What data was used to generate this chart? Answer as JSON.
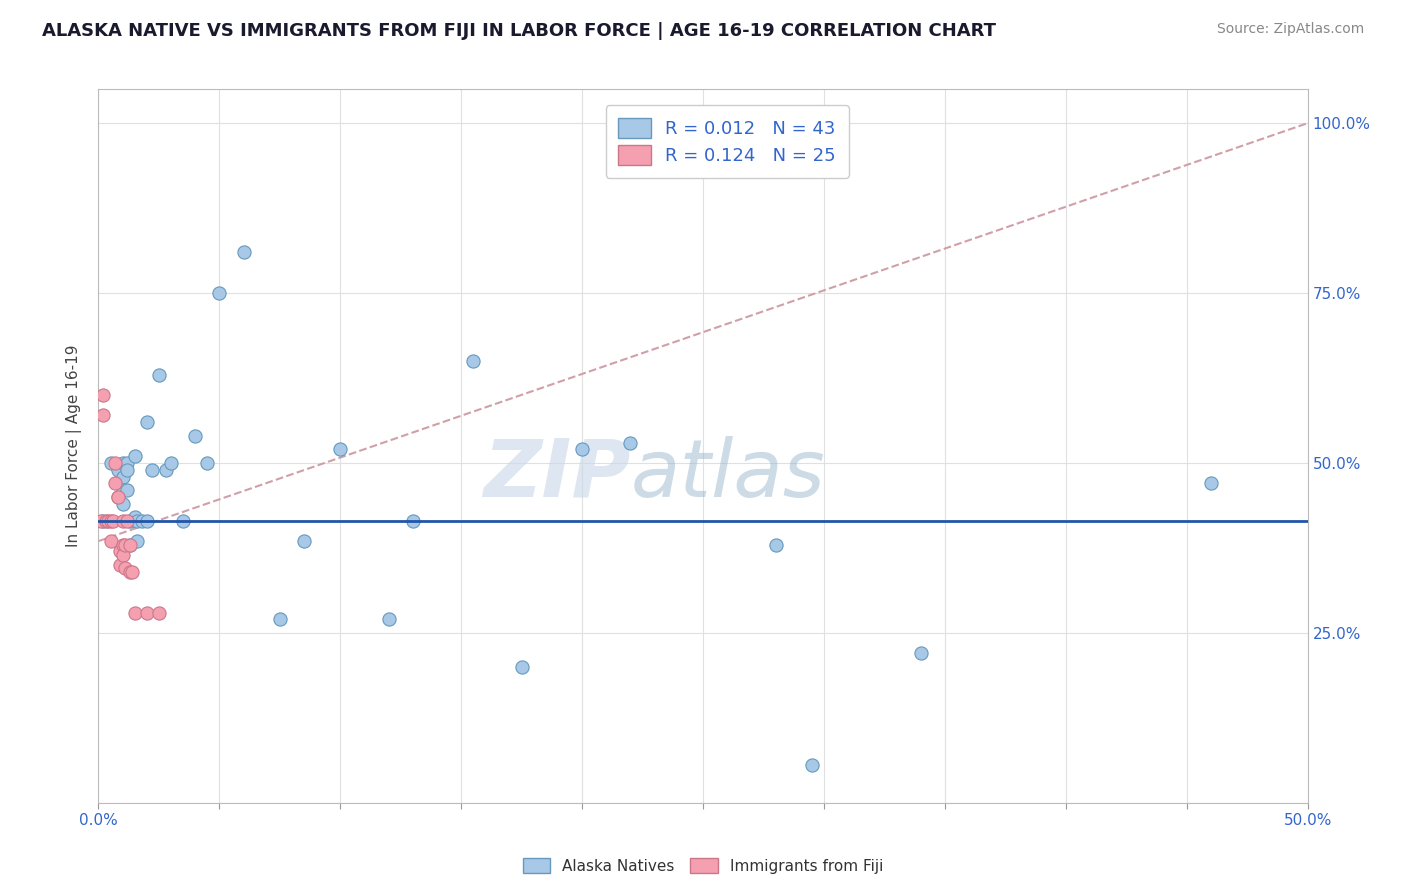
{
  "title": "ALASKA NATIVE VS IMMIGRANTS FROM FIJI IN LABOR FORCE | AGE 16-19 CORRELATION CHART",
  "source": "Source: ZipAtlas.com",
  "ylabel": "In Labor Force | Age 16-19",
  "x_min": 0.0,
  "x_max": 0.5,
  "y_min": 0.0,
  "y_max": 1.05,
  "y_ticks": [
    0.0,
    0.25,
    0.5,
    0.75,
    1.0
  ],
  "y_tick_labels": [
    "",
    "25.0%",
    "50.0%",
    "75.0%",
    "100.0%"
  ],
  "alaska_natives_x": [
    0.002,
    0.005,
    0.008,
    0.008,
    0.008,
    0.01,
    0.01,
    0.01,
    0.01,
    0.012,
    0.012,
    0.012,
    0.013,
    0.013,
    0.015,
    0.015,
    0.016,
    0.016,
    0.018,
    0.02,
    0.02,
    0.022,
    0.025,
    0.028,
    0.03,
    0.035,
    0.04,
    0.045,
    0.05,
    0.06,
    0.075,
    0.085,
    0.1,
    0.12,
    0.13,
    0.155,
    0.175,
    0.2,
    0.22,
    0.28,
    0.295,
    0.34,
    0.46
  ],
  "alaska_natives_y": [
    0.415,
    0.5,
    0.49,
    0.47,
    0.45,
    0.5,
    0.48,
    0.46,
    0.44,
    0.5,
    0.49,
    0.46,
    0.415,
    0.38,
    0.51,
    0.42,
    0.415,
    0.385,
    0.415,
    0.56,
    0.415,
    0.49,
    0.63,
    0.49,
    0.5,
    0.415,
    0.54,
    0.5,
    0.75,
    0.81,
    0.27,
    0.385,
    0.52,
    0.27,
    0.415,
    0.65,
    0.2,
    0.52,
    0.53,
    0.38,
    0.055,
    0.22,
    0.47
  ],
  "fiji_x": [
    0.001,
    0.002,
    0.002,
    0.003,
    0.004,
    0.005,
    0.005,
    0.006,
    0.007,
    0.007,
    0.008,
    0.009,
    0.009,
    0.01,
    0.01,
    0.01,
    0.011,
    0.011,
    0.012,
    0.013,
    0.013,
    0.014,
    0.015,
    0.02,
    0.025
  ],
  "fiji_y": [
    0.415,
    0.6,
    0.57,
    0.415,
    0.415,
    0.415,
    0.385,
    0.415,
    0.5,
    0.47,
    0.45,
    0.37,
    0.35,
    0.415,
    0.38,
    0.365,
    0.38,
    0.345,
    0.415,
    0.38,
    0.34,
    0.34,
    0.28,
    0.28,
    0.28
  ],
  "alaska_color": "#a8c8e8",
  "alaska_edge": "#6699bb",
  "fiji_color": "#f4a0b0",
  "fiji_edge": "#cc7788",
  "trend_alaska_color": "#2255aa",
  "trend_fiji_color": "#d0a0a8",
  "r_alaska": "0.012",
  "n_alaska": "43",
  "r_fiji": "0.124",
  "n_fiji": "25",
  "legend_label_alaska": "Alaska Natives",
  "legend_label_fiji": "Immigrants from Fiji",
  "watermark_zip": "ZIP",
  "watermark_atlas": "atlas",
  "background_color": "#ffffff",
  "grid_color": "#e0e0e0",
  "alaska_trend_y0": 0.415,
  "alaska_trend_y1": 0.415,
  "fiji_trend_y0": 0.385,
  "fiji_trend_y1": 1.0
}
